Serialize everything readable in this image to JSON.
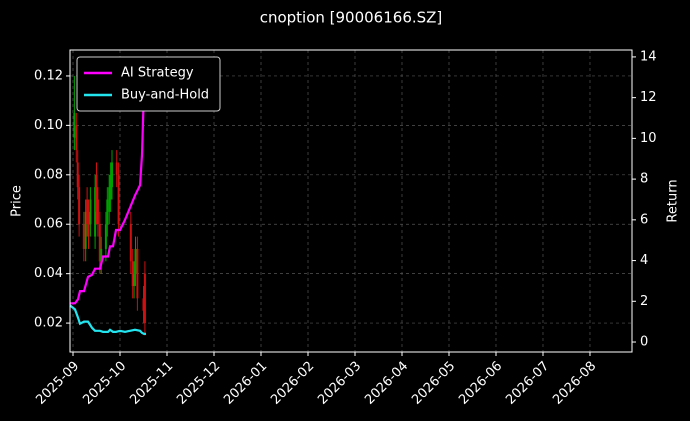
{
  "chart_data": {
    "type": "candlestick",
    "title": "cnoption [90006166.SZ]",
    "ylabel": "Price",
    "y2label": "Return",
    "xlim": [
      -0.064,
      11.894
    ],
    "xticks": [
      {
        "value": 0,
        "label": "2025-09"
      },
      {
        "value": 1,
        "label": "2025-10"
      },
      {
        "value": 2,
        "label": "2025-11"
      },
      {
        "value": 3,
        "label": "2025-12"
      },
      {
        "value": 4,
        "label": "2026-01"
      },
      {
        "value": 5,
        "label": "2026-02"
      },
      {
        "value": 6,
        "label": "2026-03"
      },
      {
        "value": 7,
        "label": "2026-04"
      },
      {
        "value": 8,
        "label": "2026-05"
      },
      {
        "value": 9,
        "label": "2026-06"
      },
      {
        "value": 10,
        "label": "2026-07"
      },
      {
        "value": 11,
        "label": "2026-08"
      }
    ],
    "ylim": [
      0.0083,
      0.1305
    ],
    "yticks": [
      {
        "value": 0.02,
        "label": "0.02"
      },
      {
        "value": 0.04,
        "label": "0.04"
      },
      {
        "value": 0.06,
        "label": "0.06"
      },
      {
        "value": 0.08,
        "label": "0.08"
      },
      {
        "value": 0.1,
        "label": "0.10"
      },
      {
        "value": 0.12,
        "label": "0.12"
      }
    ],
    "y2lim": [
      -0.49,
      14.34
    ],
    "y2ticks": [
      0,
      2,
      4,
      6,
      8,
      10,
      12,
      14
    ],
    "grid": true,
    "legend": "upper-left",
    "up_color": "#00a000",
    "down_color": "#d01010",
    "candles": {
      "x": [
        0.03,
        0.07,
        0.1,
        0.13,
        0.23,
        0.27,
        0.3,
        0.33,
        0.37,
        0.47,
        0.5,
        0.53,
        0.57,
        0.6,
        0.7,
        0.73,
        0.77,
        0.8,
        0.83,
        0.93,
        0.97,
        1.23,
        1.27,
        1.3,
        1.33,
        1.37,
        1.5,
        1.53
      ],
      "open": [
        0.095,
        0.1,
        0.085,
        0.075,
        0.06,
        0.05,
        0.07,
        0.065,
        0.06,
        0.055,
        0.08,
        0.07,
        0.06,
        0.045,
        0.05,
        0.06,
        0.065,
        0.07,
        0.075,
        0.085,
        0.08,
        0.06,
        0.045,
        0.035,
        0.04,
        0.05,
        0.03,
        0.04
      ],
      "high": [
        0.12,
        0.105,
        0.09,
        0.08,
        0.065,
        0.07,
        0.075,
        0.07,
        0.075,
        0.08,
        0.085,
        0.075,
        0.065,
        0.055,
        0.065,
        0.075,
        0.08,
        0.085,
        0.09,
        0.09,
        0.085,
        0.065,
        0.05,
        0.045,
        0.055,
        0.055,
        0.035,
        0.045
      ],
      "low": [
        0.09,
        0.085,
        0.07,
        0.055,
        0.045,
        0.045,
        0.055,
        0.05,
        0.055,
        0.05,
        0.06,
        0.055,
        0.04,
        0.04,
        0.045,
        0.055,
        0.06,
        0.065,
        0.07,
        0.075,
        0.055,
        0.04,
        0.03,
        0.03,
        0.035,
        0.025,
        0.02,
        0.015
      ],
      "close": [
        0.105,
        0.09,
        0.075,
        0.06,
        0.05,
        0.065,
        0.06,
        0.055,
        0.07,
        0.075,
        0.065,
        0.06,
        0.045,
        0.05,
        0.06,
        0.07,
        0.075,
        0.08,
        0.085,
        0.08,
        0.06,
        0.045,
        0.035,
        0.04,
        0.05,
        0.03,
        0.025,
        0.02
      ]
    },
    "lines": {
      "x": [
        -0.064,
        0.043,
        0.106,
        0.149,
        0.234,
        0.319,
        0.404,
        0.468,
        0.574,
        0.638,
        0.745,
        0.787,
        0.851,
        0.915,
        1.0,
        1.106,
        1.213,
        1.319,
        1.426,
        1.468,
        1.511,
        1.553
      ],
      "series": [
        {
          "name": "AI Strategy",
          "color": "#ff00ff",
          "axis": "y2",
          "values": [
            1.9,
            1.9,
            2.1,
            2.5,
            2.5,
            3.2,
            3.3,
            3.6,
            3.6,
            4.2,
            4.2,
            4.7,
            4.7,
            5.5,
            5.5,
            6.0,
            6.6,
            7.2,
            7.7,
            9.2,
            12.5,
            13.4
          ]
        },
        {
          "name": "Buy-and-Hold",
          "color": "#22e5f0",
          "axis": "y2",
          "values": [
            1.8,
            1.6,
            1.2,
            0.9,
            1.0,
            1.0,
            0.7,
            0.55,
            0.55,
            0.5,
            0.5,
            0.6,
            0.5,
            0.5,
            0.55,
            0.5,
            0.55,
            0.6,
            0.55,
            0.45,
            0.4,
            0.4
          ]
        }
      ]
    }
  }
}
